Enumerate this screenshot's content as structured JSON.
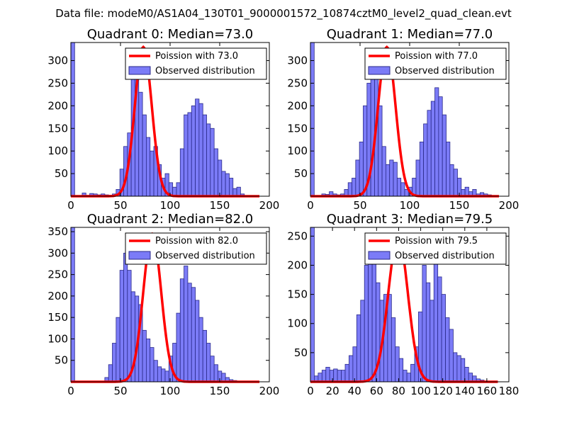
{
  "suptitle": "Data file: modeM0/AS1A04_130T01_9000001572_10874cztM0_level2_quad_clean.evt",
  "colors": {
    "bar_fill": "#7b7bf7",
    "bar_edge": "#2a2a8a",
    "curve": "#ff0000"
  },
  "chart_data": [
    {
      "type": "bar",
      "title": "Quadrant 0: Median=73.0",
      "legend": {
        "curve_label": "Poission with 73.0",
        "bars_label": "Observed distribution",
        "position": "top-right"
      },
      "xlim": [
        0,
        200
      ],
      "ylim": [
        0,
        340
      ],
      "xticks": [
        "0",
        "50",
        "100",
        "150",
        "200"
      ],
      "yticks": [
        "0",
        "50",
        "100",
        "150",
        "200",
        "250",
        "300"
      ],
      "bin_width": 3.8,
      "bins": [
        [
          0,
          340
        ],
        [
          3.8,
          1
        ],
        [
          7.6,
          1
        ],
        [
          11.4,
          7
        ],
        [
          15.2,
          2
        ],
        [
          19,
          6
        ],
        [
          22.8,
          5
        ],
        [
          26.6,
          3
        ],
        [
          30.4,
          5
        ],
        [
          34.2,
          3
        ],
        [
          38,
          2
        ],
        [
          41.8,
          5
        ],
        [
          45.6,
          15
        ],
        [
          49.4,
          60
        ],
        [
          53.2,
          110
        ],
        [
          57,
          140
        ],
        [
          60.8,
          300
        ],
        [
          64.6,
          260
        ],
        [
          68.4,
          230
        ],
        [
          72.2,
          180
        ],
        [
          76,
          130
        ],
        [
          79.8,
          100
        ],
        [
          83.6,
          110
        ],
        [
          87.4,
          70
        ],
        [
          91.2,
          40
        ],
        [
          95,
          50
        ],
        [
          98.8,
          30
        ],
        [
          102.6,
          20
        ],
        [
          106.4,
          30
        ],
        [
          110.2,
          105
        ],
        [
          114,
          180
        ],
        [
          117.8,
          185
        ],
        [
          121.6,
          200
        ],
        [
          125.4,
          215
        ],
        [
          129.2,
          205
        ],
        [
          133,
          180
        ],
        [
          136.8,
          160
        ],
        [
          140.6,
          150
        ],
        [
          144.4,
          105
        ],
        [
          148.2,
          80
        ],
        [
          152,
          55
        ],
        [
          155.8,
          50
        ],
        [
          159.6,
          40
        ],
        [
          163.4,
          17
        ],
        [
          167.2,
          20
        ],
        [
          171,
          5
        ],
        [
          174.8,
          1
        ],
        [
          178.6,
          1
        ]
      ],
      "poisson": {
        "mean": 73.0,
        "peak": 330
      }
    },
    {
      "type": "bar",
      "title": "Quadrant 1: Median=77.0",
      "legend": {
        "curve_label": "Poission with 77.0",
        "bars_label": "Observed distribution",
        "position": "top-right"
      },
      "xlim": [
        0,
        200
      ],
      "ylim": [
        0,
        340
      ],
      "xticks": [
        "0",
        "50",
        "100",
        "150",
        "200"
      ],
      "yticks": [
        "0",
        "50",
        "100",
        "150",
        "200",
        "250",
        "300"
      ],
      "bin_width": 3.8,
      "bins": [
        [
          0,
          340
        ],
        [
          3.8,
          1
        ],
        [
          7.6,
          1
        ],
        [
          11.4,
          5
        ],
        [
          15.2,
          4
        ],
        [
          19,
          10
        ],
        [
          22.8,
          5
        ],
        [
          26.6,
          3
        ],
        [
          30.4,
          5
        ],
        [
          34.2,
          15
        ],
        [
          38,
          30
        ],
        [
          41.8,
          40
        ],
        [
          45.6,
          80
        ],
        [
          49.4,
          120
        ],
        [
          53.2,
          200
        ],
        [
          57,
          250
        ],
        [
          60.8,
          300
        ],
        [
          64.6,
          270
        ],
        [
          68.4,
          200
        ],
        [
          72.2,
          110
        ],
        [
          76,
          70
        ],
        [
          79.8,
          80
        ],
        [
          83.6,
          75
        ],
        [
          87.4,
          40
        ],
        [
          91.2,
          30
        ],
        [
          95,
          15
        ],
        [
          98.8,
          20
        ],
        [
          102.6,
          40
        ],
        [
          106.4,
          80
        ],
        [
          110.2,
          120
        ],
        [
          114,
          160
        ],
        [
          117.8,
          190
        ],
        [
          121.6,
          210
        ],
        [
          125.4,
          240
        ],
        [
          129.2,
          220
        ],
        [
          133,
          180
        ],
        [
          136.8,
          120
        ],
        [
          140.6,
          70
        ],
        [
          144.4,
          60
        ],
        [
          148.2,
          40
        ],
        [
          152,
          15
        ],
        [
          155.8,
          20
        ],
        [
          159.6,
          10
        ],
        [
          163.4,
          15
        ],
        [
          167.2,
          5
        ],
        [
          171,
          8
        ],
        [
          174.8,
          5
        ],
        [
          178.6,
          3
        ]
      ],
      "poisson": {
        "mean": 77.0,
        "peak": 330
      }
    },
    {
      "type": "bar",
      "title": "Quadrant 2: Median=82.0",
      "legend": {
        "curve_label": "Poission with 82.0",
        "bars_label": "Observed distribution",
        "position": "top-right"
      },
      "xlim": [
        0,
        200
      ],
      "ylim": [
        0,
        360
      ],
      "xticks": [
        "0",
        "50",
        "100",
        "150",
        "200"
      ],
      "yticks": [
        "0",
        "50",
        "100",
        "150",
        "200",
        "250",
        "300",
        "350"
      ],
      "bin_width": 3.8,
      "bins": [
        [
          0,
          360
        ],
        [
          3.8,
          1
        ],
        [
          7.6,
          1
        ],
        [
          11.4,
          1
        ],
        [
          15.2,
          1
        ],
        [
          19,
          1
        ],
        [
          22.8,
          1
        ],
        [
          26.6,
          1
        ],
        [
          30.4,
          1
        ],
        [
          34.2,
          10
        ],
        [
          38,
          40
        ],
        [
          41.8,
          90
        ],
        [
          45.6,
          150
        ],
        [
          49.4,
          260
        ],
        [
          53.2,
          300
        ],
        [
          57,
          260
        ],
        [
          60.8,
          210
        ],
        [
          64.6,
          200
        ],
        [
          68.4,
          180
        ],
        [
          72.2,
          120
        ],
        [
          76,
          100
        ],
        [
          79.8,
          80
        ],
        [
          83.6,
          50
        ],
        [
          87.4,
          35
        ],
        [
          91.2,
          30
        ],
        [
          95,
          25
        ],
        [
          98.8,
          60
        ],
        [
          102.6,
          90
        ],
        [
          106.4,
          160
        ],
        [
          110.2,
          240
        ],
        [
          114,
          270
        ],
        [
          117.8,
          230
        ],
        [
          121.6,
          220
        ],
        [
          125.4,
          190
        ],
        [
          129.2,
          150
        ],
        [
          133,
          120
        ],
        [
          136.8,
          90
        ],
        [
          140.6,
          60
        ],
        [
          144.4,
          40
        ],
        [
          148.2,
          25
        ],
        [
          152,
          20
        ],
        [
          155.8,
          10
        ],
        [
          159.6,
          5
        ],
        [
          163.4,
          3
        ],
        [
          167.2,
          1
        ],
        [
          171,
          1
        ]
      ],
      "poisson": {
        "mean": 82.0,
        "peak": 345
      }
    },
    {
      "type": "bar",
      "title": "Quadrant 3: Median=79.5",
      "legend": {
        "curve_label": "Poission with 79.5",
        "bars_label": "Observed distribution",
        "position": "top-right"
      },
      "xlim": [
        0,
        180
      ],
      "ylim": [
        0,
        265
      ],
      "xticks": [
        "0",
        "20",
        "40",
        "60",
        "80",
        "100",
        "120",
        "140",
        "160",
        "180"
      ],
      "yticks": [
        "0",
        "50",
        "100",
        "150",
        "200",
        "250"
      ],
      "bin_width": 3.5,
      "bins": [
        [
          0,
          265
        ],
        [
          3.5,
          10
        ],
        [
          7,
          15
        ],
        [
          10.5,
          20
        ],
        [
          14,
          25
        ],
        [
          17.5,
          20
        ],
        [
          21,
          22
        ],
        [
          24.5,
          20
        ],
        [
          28,
          20
        ],
        [
          31.5,
          30
        ],
        [
          35,
          45
        ],
        [
          38.5,
          60
        ],
        [
          42,
          115
        ],
        [
          45.5,
          140
        ],
        [
          49,
          200
        ],
        [
          52.5,
          240
        ],
        [
          56,
          210
        ],
        [
          59.5,
          170
        ],
        [
          63,
          140
        ],
        [
          66.5,
          150
        ],
        [
          70,
          150
        ],
        [
          73.5,
          110
        ],
        [
          77,
          60
        ],
        [
          80.5,
          40
        ],
        [
          84,
          20
        ],
        [
          87.5,
          15
        ],
        [
          91,
          30
        ],
        [
          94.5,
          60
        ],
        [
          98,
          120
        ],
        [
          101.5,
          200
        ],
        [
          105,
          170
        ],
        [
          108.5,
          140
        ],
        [
          112,
          220
        ],
        [
          115.5,
          180
        ],
        [
          119,
          150
        ],
        [
          122.5,
          110
        ],
        [
          126,
          90
        ],
        [
          129.5,
          50
        ],
        [
          133,
          45
        ],
        [
          136.5,
          40
        ],
        [
          140,
          25
        ],
        [
          143.5,
          15
        ],
        [
          147,
          10
        ],
        [
          150.5,
          5
        ],
        [
          154,
          3
        ]
      ],
      "poisson": {
        "mean": 79.5,
        "peak": 250
      }
    }
  ]
}
